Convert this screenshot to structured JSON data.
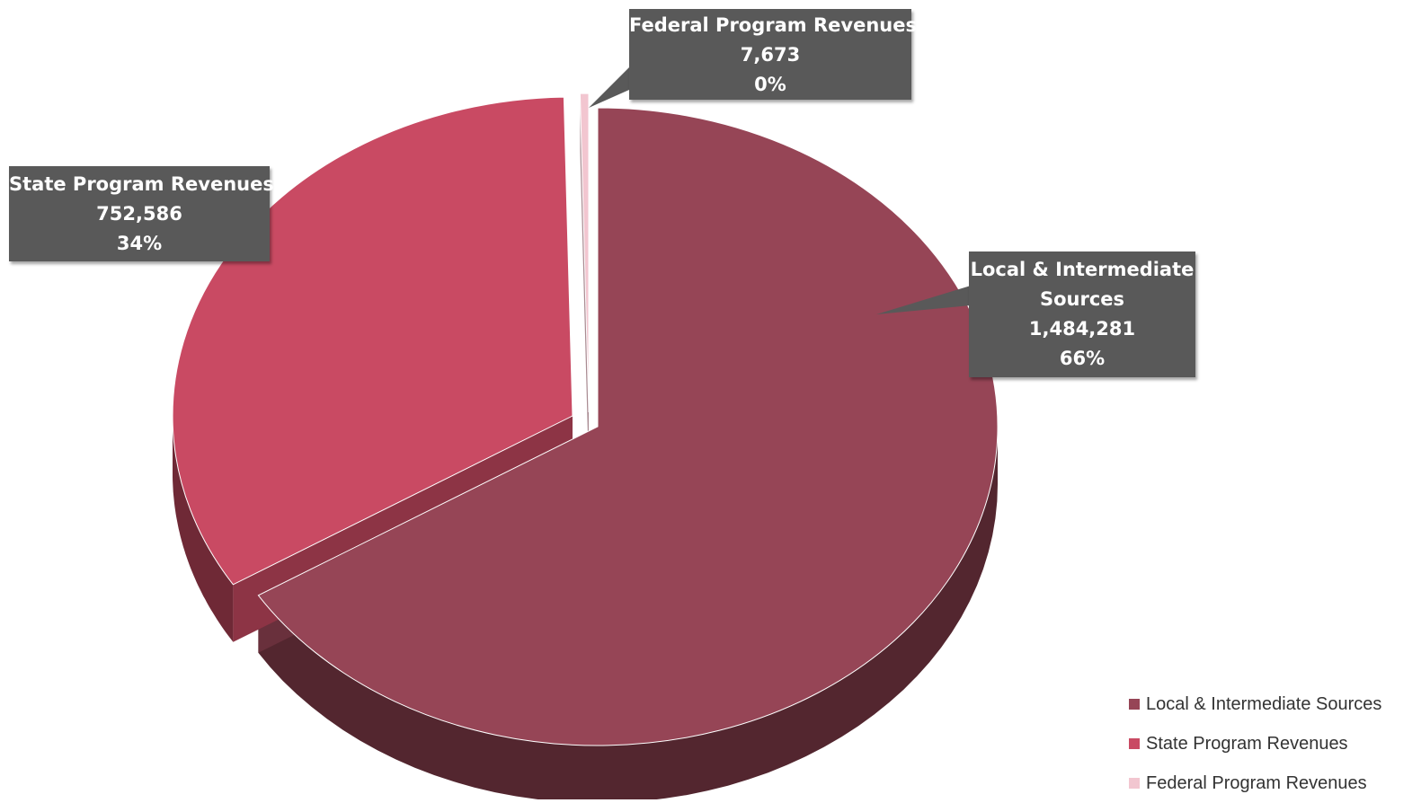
{
  "chart_data": {
    "type": "pie",
    "title": "",
    "three_d": true,
    "legend_position": "bottom-right",
    "slices": [
      {
        "name": "Local & Intermediate Sources",
        "value": 1484281,
        "percent_label": "66%",
        "value_label": "1,484,281",
        "color": "#964556"
      },
      {
        "name": "State Program Revenues",
        "value": 752586,
        "percent_label": "34%",
        "value_label": "752,586",
        "color": "#c94a63"
      },
      {
        "name": "Federal Program Revenues",
        "value": 7673,
        "percent_label": "0%",
        "value_label": "7,673",
        "color": "#f2c6d0"
      }
    ]
  },
  "colors": {
    "callout_bg": "#595959",
    "callout_text": "#ffffff"
  }
}
